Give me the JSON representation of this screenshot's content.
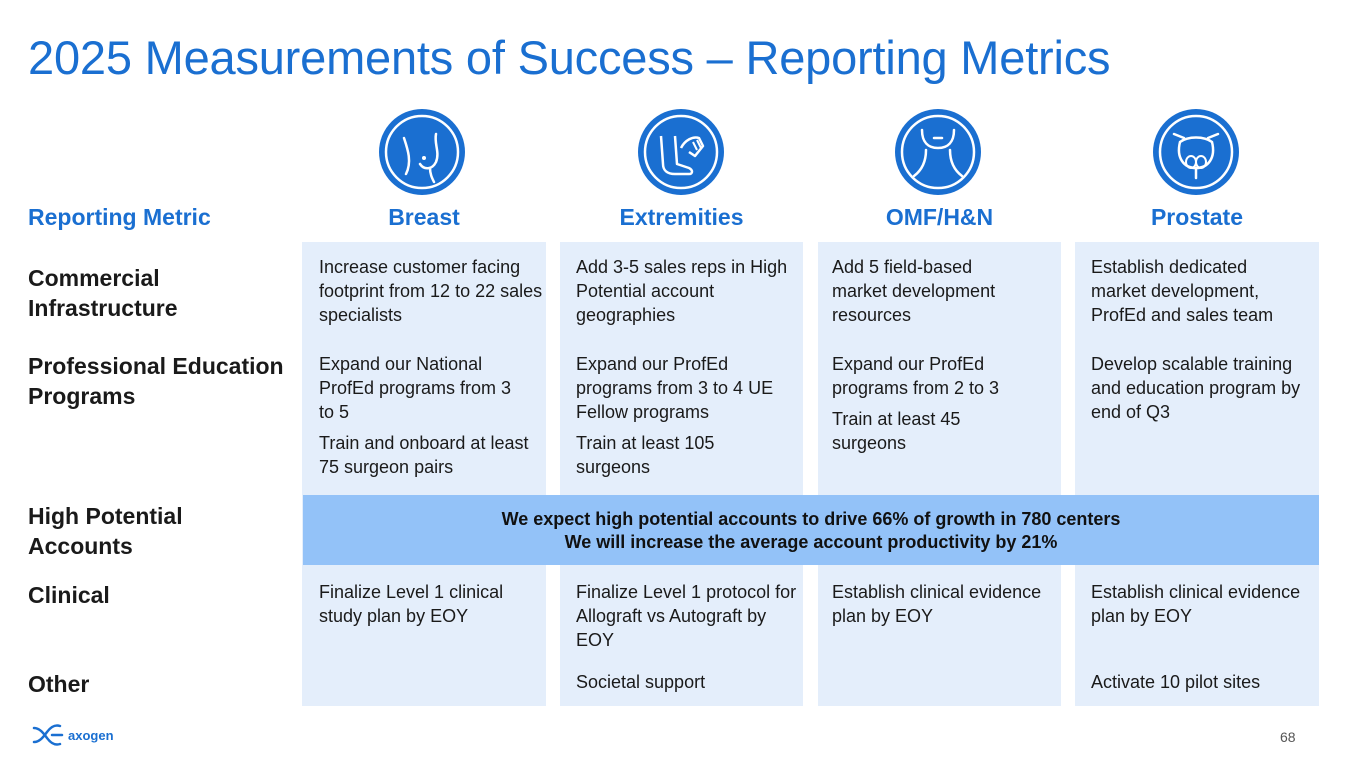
{
  "title": "2025 Measurements of Success – Reporting Metrics",
  "header": {
    "metric": "Reporting Metric",
    "cols": [
      "Breast",
      "Extremities",
      "OMF/H&N",
      "Prostate"
    ]
  },
  "icons": [
    "breast-icon",
    "foot-hand-icon",
    "neck-icon",
    "prostate-icon"
  ],
  "rows": {
    "commercial": "Commercial Infrastructure",
    "profed": "Professional Education Programs",
    "high_potential": "High Potential Accounts",
    "clinical": "Clinical",
    "other": "Other"
  },
  "cells": {
    "breast": {
      "commercial": "Increase customer facing footprint from 12 to 22 sales specialists",
      "profed1": "Expand our National ProfEd programs from 3 to 5",
      "profed2": "Train and onboard at least 75 surgeon pairs",
      "clinical": "Finalize Level 1 clinical study plan by EOY"
    },
    "extremities": {
      "commercial": "Add 3-5 sales reps in High Potential account geographies",
      "profed1": "Expand our ProfEd programs from 3 to 4 UE Fellow programs",
      "profed2": "Train at least 105 surgeons",
      "clinical": "Finalize Level 1 protocol for Allograft vs Autograft by EOY",
      "other": "Societal support"
    },
    "omf": {
      "commercial": "Add 5 field-based market development resources",
      "profed1": "Expand our ProfEd programs from 2 to 3",
      "profed2": "Train at least 45 surgeons",
      "clinical": "Establish clinical evidence plan by EOY"
    },
    "prostate": {
      "commercial": "Establish dedicated market development, ProfEd and sales team",
      "profed1": "Develop scalable training and education program by end of Q3",
      "clinical": "Establish clinical evidence plan by EOY",
      "other": "Activate 10 pilot sites"
    }
  },
  "banner": {
    "line1": "We expect high potential accounts to drive 66% of growth in 780 centers",
    "line2": "We will increase the average account productivity by 21%"
  },
  "logo_text": "axogen",
  "page_number": "68",
  "colors": {
    "accent": "#1a6fd1",
    "column_bg": "#e4eefb",
    "banner_bg": "#93c2f8"
  }
}
